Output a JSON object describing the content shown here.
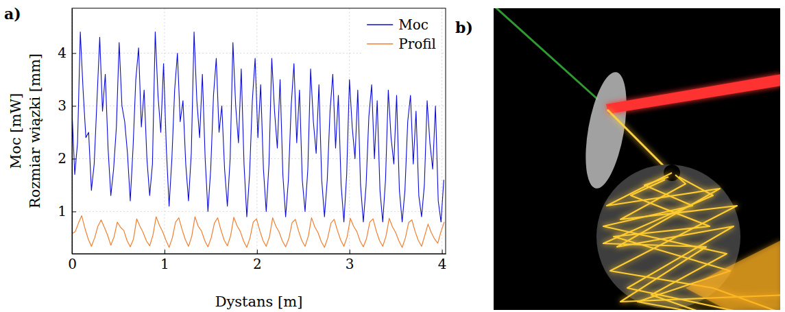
{
  "chart_data": {
    "type": "line",
    "panel_label": "a)",
    "x_label": "Dystans [m]",
    "y_label": [
      "Moc [mW]",
      "Rozmiar wiązki [mm]"
    ],
    "xlim": [
      0,
      4.04
    ],
    "ylim": [
      0.2,
      4.85
    ],
    "xticks": [
      0,
      1,
      2,
      3,
      4
    ],
    "yticks": [
      1,
      2,
      3,
      4
    ],
    "grid": true,
    "legend": "upper right",
    "series": [
      {
        "name": "Moc",
        "color": "#0a0ad8",
        "x": [
          0,
          0.03,
          0.06,
          0.09,
          0.12,
          0.15,
          0.18,
          0.21,
          0.24,
          0.27,
          0.3,
          0.33,
          0.36,
          0.39,
          0.42,
          0.45,
          0.48,
          0.51,
          0.54,
          0.57,
          0.6,
          0.63,
          0.66,
          0.69,
          0.72,
          0.75,
          0.78,
          0.81,
          0.84,
          0.87,
          0.9,
          0.93,
          0.96,
          0.99,
          1.02,
          1.05,
          1.08,
          1.11,
          1.14,
          1.17,
          1.2,
          1.23,
          1.26,
          1.29,
          1.32,
          1.35,
          1.38,
          1.41,
          1.44,
          1.47,
          1.5,
          1.53,
          1.56,
          1.59,
          1.62,
          1.65,
          1.68,
          1.71,
          1.74,
          1.77,
          1.8,
          1.83,
          1.86,
          1.89,
          1.92,
          1.95,
          1.98,
          2.01,
          2.04,
          2.07,
          2.1,
          2.13,
          2.16,
          2.19,
          2.22,
          2.25,
          2.28,
          2.31,
          2.34,
          2.37,
          2.4,
          2.43,
          2.46,
          2.49,
          2.52,
          2.55,
          2.58,
          2.61,
          2.64,
          2.67,
          2.7,
          2.73,
          2.76,
          2.79,
          2.82,
          2.85,
          2.88,
          2.91,
          2.94,
          2.97,
          3.0,
          3.03,
          3.06,
          3.09,
          3.12,
          3.15,
          3.18,
          3.21,
          3.24,
          3.27,
          3.3,
          3.33,
          3.36,
          3.39,
          3.42,
          3.45,
          3.48,
          3.51,
          3.54,
          3.57,
          3.6,
          3.63,
          3.66,
          3.69,
          3.72,
          3.75,
          3.78,
          3.81,
          3.84,
          3.87,
          3.9,
          3.93,
          3.96,
          3.99,
          4.02
        ],
        "values": [
          2.9,
          1.7,
          2.3,
          4.4,
          3.3,
          2.4,
          2.5,
          1.4,
          1.9,
          3.1,
          4.3,
          2.9,
          3.6,
          2.2,
          1.3,
          1.8,
          2.6,
          4.2,
          3.0,
          2.7,
          2.1,
          1.2,
          2.2,
          3.5,
          4.1,
          2.6,
          3.3,
          2.0,
          1.3,
          1.9,
          4.4,
          3.2,
          2.5,
          3.8,
          2.2,
          1.1,
          2.0,
          3.3,
          4.0,
          2.7,
          3.1,
          1.9,
          1.2,
          2.1,
          4.4,
          3.1,
          2.4,
          3.6,
          2.0,
          1.0,
          1.8,
          3.2,
          3.9,
          2.5,
          3.0,
          1.8,
          1.1,
          2.0,
          4.2,
          3.0,
          2.3,
          3.7,
          1.9,
          0.9,
          1.7,
          3.1,
          3.9,
          2.4,
          3.4,
          1.8,
          1.0,
          1.9,
          3.9,
          2.9,
          2.2,
          3.5,
          1.7,
          0.9,
          1.6,
          3.0,
          3.8,
          2.3,
          3.3,
          1.6,
          1.0,
          1.8,
          3.7,
          2.7,
          2.1,
          3.4,
          1.6,
          0.9,
          1.6,
          2.9,
          3.6,
          2.2,
          3.2,
          1.5,
          0.8,
          1.7,
          3.5,
          2.6,
          2.0,
          3.3,
          1.5,
          0.8,
          1.5,
          2.8,
          3.4,
          2.0,
          3.1,
          1.4,
          0.8,
          1.6,
          3.3,
          2.4,
          1.9,
          3.2,
          1.4,
          0.8,
          1.4,
          2.7,
          3.2,
          1.9,
          2.9,
          1.3,
          0.9,
          1.5,
          3.1,
          2.3,
          1.8,
          3.0,
          1.2,
          0.8,
          1.6
        ]
      },
      {
        "name": "Profil",
        "color": "#f07f30",
        "x": [
          0,
          0.035,
          0.07,
          0.105,
          0.14,
          0.175,
          0.21,
          0.245,
          0.28,
          0.315,
          0.35,
          0.385,
          0.42,
          0.455,
          0.49,
          0.525,
          0.56,
          0.595,
          0.63,
          0.665,
          0.7,
          0.735,
          0.77,
          0.805,
          0.84,
          0.875,
          0.91,
          0.945,
          0.98,
          1.015,
          1.05,
          1.085,
          1.12,
          1.155,
          1.19,
          1.225,
          1.26,
          1.295,
          1.33,
          1.365,
          1.4,
          1.435,
          1.47,
          1.505,
          1.54,
          1.575,
          1.61,
          1.645,
          1.68,
          1.715,
          1.75,
          1.785,
          1.82,
          1.855,
          1.89,
          1.925,
          1.96,
          1.995,
          2.03,
          2.065,
          2.1,
          2.135,
          2.17,
          2.205,
          2.24,
          2.275,
          2.31,
          2.345,
          2.38,
          2.415,
          2.45,
          2.485,
          2.52,
          2.555,
          2.59,
          2.625,
          2.66,
          2.695,
          2.73,
          2.765,
          2.8,
          2.835,
          2.87,
          2.905,
          2.94,
          2.975,
          3.01,
          3.045,
          3.08,
          3.115,
          3.15,
          3.185,
          3.22,
          3.255,
          3.29,
          3.325,
          3.36,
          3.395,
          3.43,
          3.465,
          3.5,
          3.535,
          3.57,
          3.605,
          3.64,
          3.675,
          3.71,
          3.745,
          3.78,
          3.815,
          3.85,
          3.885,
          3.92,
          3.955,
          3.99,
          4.025
        ],
        "values": [
          0.58,
          0.62,
          0.78,
          0.92,
          0.68,
          0.48,
          0.34,
          0.5,
          0.72,
          0.84,
          0.7,
          0.55,
          0.36,
          0.52,
          0.8,
          0.7,
          0.64,
          0.45,
          0.33,
          0.48,
          0.86,
          0.72,
          0.6,
          0.44,
          0.35,
          0.55,
          0.9,
          0.74,
          0.62,
          0.46,
          0.32,
          0.5,
          0.8,
          0.88,
          0.66,
          0.47,
          0.34,
          0.53,
          0.9,
          0.72,
          0.63,
          0.45,
          0.33,
          0.5,
          0.78,
          0.88,
          0.65,
          0.46,
          0.35,
          0.54,
          0.89,
          0.73,
          0.62,
          0.44,
          0.32,
          0.5,
          0.8,
          0.86,
          0.64,
          0.45,
          0.34,
          0.52,
          0.88,
          0.72,
          0.61,
          0.44,
          0.33,
          0.49,
          0.79,
          0.85,
          0.63,
          0.45,
          0.34,
          0.53,
          0.88,
          0.71,
          0.6,
          0.43,
          0.32,
          0.5,
          0.78,
          0.85,
          0.64,
          0.46,
          0.34,
          0.52,
          0.87,
          0.72,
          0.62,
          0.44,
          0.33,
          0.49,
          0.8,
          0.86,
          0.63,
          0.45,
          0.34,
          0.53,
          0.87,
          0.71,
          0.6,
          0.44,
          0.32,
          0.5,
          0.79,
          0.84,
          0.62,
          0.45,
          0.34,
          0.55,
          0.76,
          0.6,
          0.48,
          0.4,
          0.62,
          0.8
        ]
      }
    ]
  },
  "image_panel": {
    "panel_label": "b)"
  }
}
